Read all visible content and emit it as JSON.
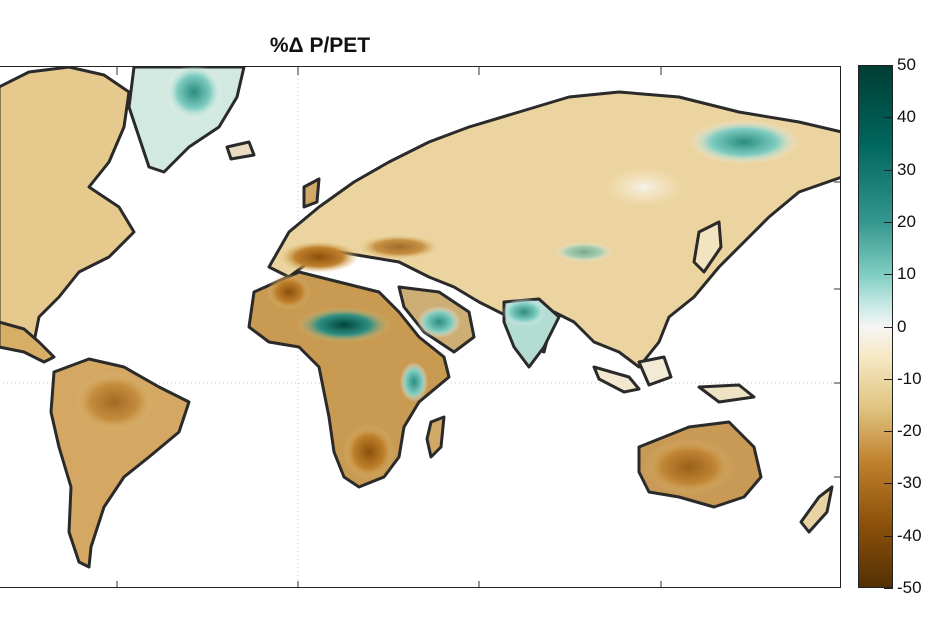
{
  "title": "%Δ P/PET",
  "colorbar": {
    "ticks": [
      "50",
      "40",
      "30",
      "20",
      "10",
      "0",
      "-10",
      "-20",
      "-30",
      "-40",
      "-50"
    ],
    "range": [
      -50,
      50
    ],
    "colors": {
      "high": "#003d33",
      "mid_high": "#35978f",
      "zero": "#f5f5f5",
      "mid_low": "#dfc27d",
      "low": "#543005"
    }
  },
  "map": {
    "projection": "Robinson-like world, central meridian ~30E",
    "regions": [
      {
        "name": "sahel",
        "value": 45
      },
      {
        "name": "arabian-peninsula-south",
        "value": 30
      },
      {
        "name": "horn-of-africa",
        "value": 30
      },
      {
        "name": "india-northwest",
        "value": 25
      },
      {
        "name": "greenland",
        "value": 20
      },
      {
        "name": "northeast-siberia",
        "value": 20
      },
      {
        "name": "central-asia",
        "value": 10
      },
      {
        "name": "mediterranean",
        "value": -40
      },
      {
        "name": "north-africa",
        "value": -35
      },
      {
        "name": "southern-africa",
        "value": -35
      },
      {
        "name": "amazon",
        "value": -25
      },
      {
        "name": "australia",
        "value": -30
      },
      {
        "name": "europe",
        "value": -20
      },
      {
        "name": "north-america",
        "value": -20
      }
    ]
  }
}
